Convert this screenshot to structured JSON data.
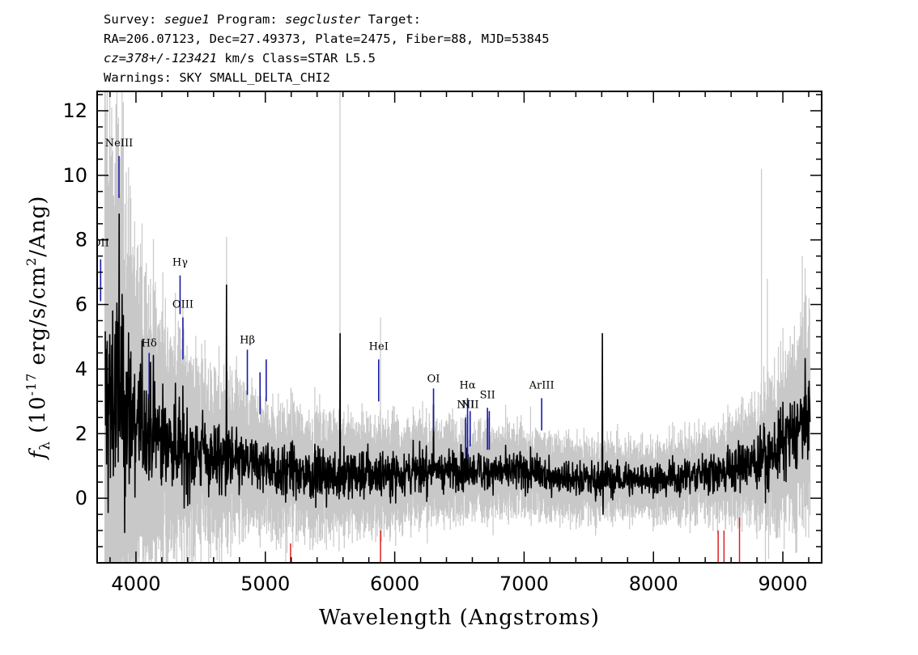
{
  "header": {
    "survey_label": "Survey: ",
    "survey": "segue1",
    "program_label": " Program: ",
    "program": "segcluster",
    "target_label": " Target:",
    "line2": "RA=206.07123, Dec=27.49373, Plate=2475, Fiber=88, MJD=53845",
    "cz_value": "cz=378+/-123421",
    "cz_rest": " km/s Class=STAR L5.5",
    "warnings": "Warnings: SKY SMALL_DELTA_CHI2"
  },
  "colors": {
    "flux": "#000000",
    "error": "#c8c8c8",
    "emission_marker": "#1a1aaa",
    "sky_marker": "#e02020",
    "axes": "#000000"
  },
  "chart_data": {
    "type": "line",
    "title": "",
    "xlabel": "Wavelength (Angstroms)",
    "ylabel_main": "f",
    "ylabel_sub": "λ",
    "ylabel_rest": " (10",
    "ylabel_exp": "-17",
    "ylabel_units": " erg/s/cm",
    "ylabel_exp2": "2",
    "ylabel_end": "/Ang)",
    "xlim": [
      3700,
      9300
    ],
    "ylim": [
      -2,
      12.6
    ],
    "xticks": [
      4000,
      5000,
      6000,
      7000,
      8000,
      9000
    ],
    "xtick_labels": [
      "4000",
      "5000",
      "6000",
      "7000",
      "8000",
      "9000"
    ],
    "yticks": [
      0,
      2,
      4,
      6,
      8,
      10,
      12
    ],
    "ytick_labels": [
      "0",
      "2",
      "4",
      "6",
      "8",
      "10",
      "12"
    ],
    "grid": false,
    "flux_anchors": [
      [
        3800,
        3.0
      ],
      [
        3900,
        2.8
      ],
      [
        4000,
        2.4
      ],
      [
        4200,
        1.9
      ],
      [
        4400,
        1.5
      ],
      [
        4600,
        1.3
      ],
      [
        4800,
        1.1
      ],
      [
        5000,
        1.0
      ],
      [
        5200,
        0.8
      ],
      [
        5500,
        0.7
      ],
      [
        6000,
        0.8
      ],
      [
        6500,
        0.9
      ],
      [
        7000,
        0.8
      ],
      [
        7500,
        0.6
      ],
      [
        8000,
        0.6
      ],
      [
        8500,
        0.8
      ],
      [
        8800,
        1.1
      ],
      [
        9000,
        1.6
      ],
      [
        9210,
        2.6
      ]
    ],
    "error_anchors": [
      [
        3800,
        8.0
      ],
      [
        3900,
        6.5
      ],
      [
        4000,
        4.5
      ],
      [
        4200,
        3.2
      ],
      [
        4400,
        2.6
      ],
      [
        4600,
        2.2
      ],
      [
        4800,
        1.9
      ],
      [
        5000,
        1.7
      ],
      [
        5500,
        1.5
      ],
      [
        6000,
        1.4
      ],
      [
        6500,
        1.2
      ],
      [
        7000,
        1.1
      ],
      [
        7500,
        1.0
      ],
      [
        8000,
        0.95
      ],
      [
        8500,
        1.2
      ],
      [
        8800,
        1.6
      ],
      [
        9000,
        2.1
      ],
      [
        9210,
        2.8
      ]
    ],
    "flux_spikes": [
      {
        "x": 3870,
        "y": 8.8
      },
      {
        "x": 3820,
        "y": 5.8
      },
      {
        "x": 4700,
        "y": 6.6
      },
      {
        "x": 5577,
        "y": 5.1
      },
      {
        "x": 6300,
        "y": 2.9
      },
      {
        "x": 7605,
        "y": 5.1
      },
      {
        "x": 7610,
        "y": -0.5
      }
    ],
    "error_spikes": [
      {
        "x": 5577,
        "y": 12.6
      },
      {
        "x": 5890,
        "y": 5.6
      },
      {
        "x": 8835,
        "y": 10.2
      },
      {
        "x": 8880,
        "y": 6.8
      },
      {
        "x": 9150,
        "y": 7.5
      },
      {
        "x": 4700,
        "y": 8.1
      }
    ],
    "sky_markers": [
      {
        "x": 5195,
        "y0": -2.0,
        "y1": -1.4
      },
      {
        "x": 5890,
        "y0": -2.0,
        "y1": -1.0
      },
      {
        "x": 8500,
        "y0": -2.0,
        "y1": -1.0
      },
      {
        "x": 8545,
        "y0": -2.0,
        "y1": -1.0
      },
      {
        "x": 8665,
        "y0": -2.0,
        "y1": -0.6
      }
    ],
    "emission_lines": [
      {
        "label": "OII",
        "x": 3727,
        "y0": 6.1,
        "y1": 7.4,
        "label_y": 7.8
      },
      {
        "label": "NeIII",
        "x": 3869,
        "y0": 9.3,
        "y1": 10.6,
        "label_y": 10.9
      },
      {
        "label": "Hδ",
        "x": 4102,
        "y0": 3.1,
        "y1": 4.5,
        "label_y": 4.7
      },
      {
        "label": "Hγ",
        "x": 4341,
        "y0": 5.7,
        "y1": 6.9,
        "label_y": 7.2
      },
      {
        "label": "OIII",
        "x": 4363,
        "y0": 4.3,
        "y1": 5.6,
        "label_y": 5.9
      },
      {
        "label": "Hβ",
        "x": 4861,
        "y0": 3.2,
        "y1": 4.6,
        "label_y": 4.8
      },
      {
        "label": "OIII",
        "x": 4959,
        "y0": 2.6,
        "y1": 3.9,
        "label_y": null
      },
      {
        "label": "",
        "x": 5007,
        "y0": 3.0,
        "y1": 4.3,
        "label_y": 4.6
      },
      {
        "label": "HeI",
        "x": 5876,
        "y0": 3.0,
        "y1": 4.3,
        "label_y": 4.6
      },
      {
        "label": "OI",
        "x": 6300,
        "y0": 2.1,
        "y1": 3.4,
        "label_y": 3.6
      },
      {
        "label": "NII",
        "x": 6548,
        "y0": 1.3,
        "y1": 2.5,
        "label_y": 2.8
      },
      {
        "label": "Hα",
        "x": 6563,
        "y0": 1.2,
        "y1": 3.1,
        "label_y": 3.4
      },
      {
        "label": "NII",
        "x": 6583,
        "y0": 1.6,
        "y1": 2.7,
        "label_y": 2.8
      },
      {
        "label": "SII",
        "x": 6717,
        "y0": 1.5,
        "y1": 2.8,
        "label_y": 3.1
      },
      {
        "label": "",
        "x": 6731,
        "y0": 1.5,
        "y1": 2.7,
        "label_y": null
      },
      {
        "label": "ArIII",
        "x": 7136,
        "y0": 2.1,
        "y1": 3.1,
        "label_y": 3.4
      }
    ]
  }
}
